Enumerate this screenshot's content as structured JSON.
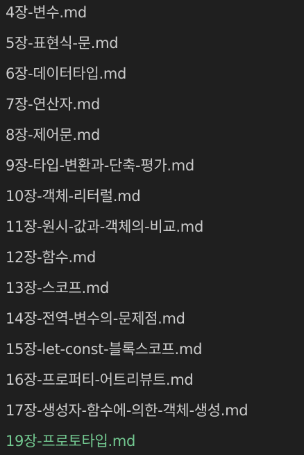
{
  "explorer": {
    "files": [
      {
        "name": "4장-변수.md"
      },
      {
        "name": "5장-표현식-문.md"
      },
      {
        "name": "6장-데이터타입.md"
      },
      {
        "name": "7장-연산자.md"
      },
      {
        "name": "8장-제어문.md"
      },
      {
        "name": "9장-타입-변환과-단축-평가.md"
      },
      {
        "name": "10장-객체-리터럴.md"
      },
      {
        "name": "11장-원시-값과-객체의-비교.md"
      },
      {
        "name": "12장-함수.md"
      },
      {
        "name": "13장-스코프.md"
      },
      {
        "name": "14장-전역-변수의-문제점.md"
      },
      {
        "name": "15장-let-const-블록스코프.md"
      },
      {
        "name": "16장-프로퍼티-어트리뷰트.md"
      },
      {
        "name": "17장-생성자-함수에-의한-객체-생성.md"
      },
      {
        "name": "19장-프로토타입.md"
      }
    ],
    "highlight_color": "#73c991",
    "text_color": "#cccccc",
    "background_color": "#1f1f1f"
  }
}
